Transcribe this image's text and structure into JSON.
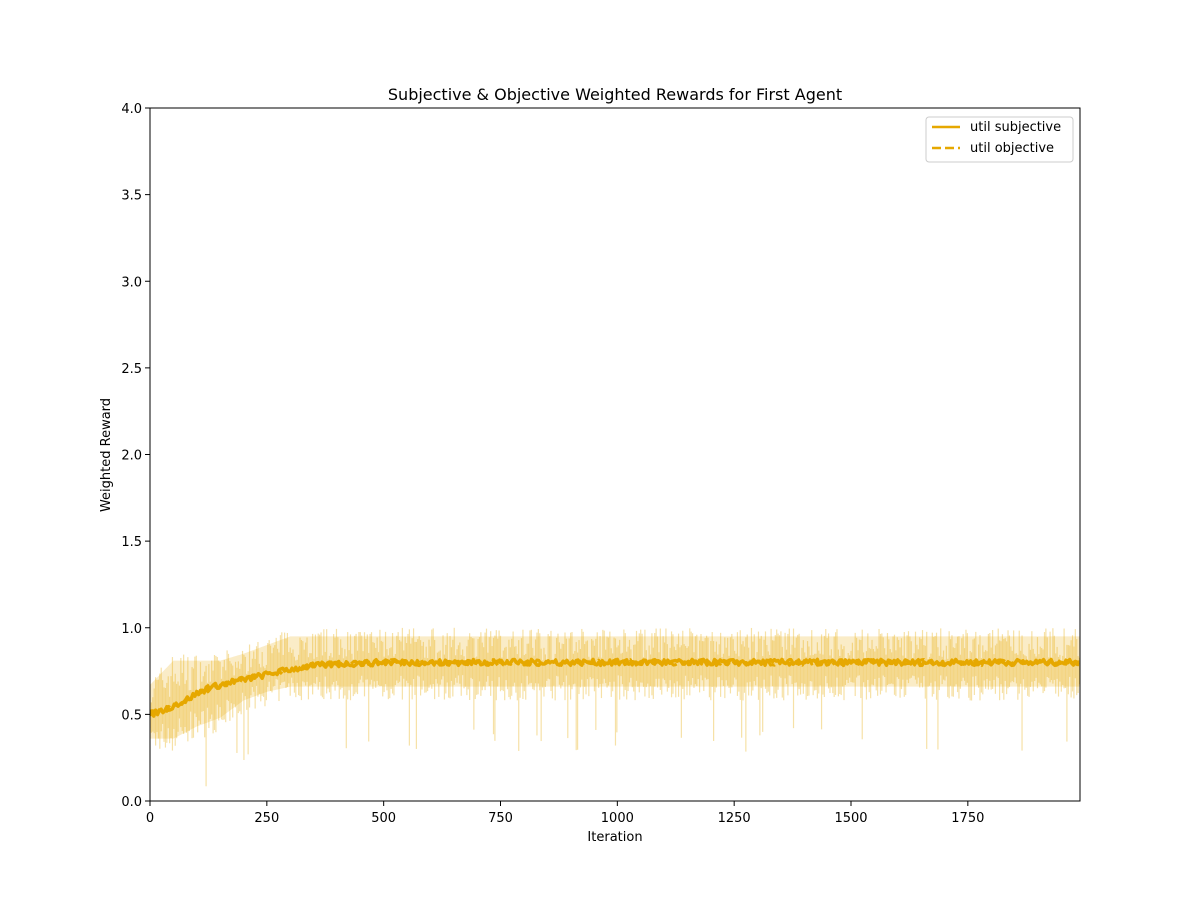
{
  "chart_data": {
    "type": "line",
    "title": "Subjective & Objective Weighted Rewards for First Agent",
    "xlabel": "Iteration",
    "ylabel": "Weighted Reward",
    "xlim": [
      0,
      1990
    ],
    "ylim": [
      0.0,
      4.0
    ],
    "xticks": [
      0,
      250,
      500,
      750,
      1000,
      1250,
      1500,
      1750
    ],
    "xtick_labels": [
      "0",
      "250",
      "500",
      "750",
      "1000",
      "1250",
      "1500",
      "1750"
    ],
    "yticks": [
      0.0,
      0.5,
      1.0,
      1.5,
      2.0,
      2.5,
      3.0,
      3.5,
      4.0
    ],
    "ytick_labels": [
      "0.0",
      "0.5",
      "1.0",
      "1.5",
      "2.0",
      "2.5",
      "3.0",
      "3.5",
      "4.0"
    ],
    "grid": false,
    "legend_position": "top-right",
    "series": [
      {
        "name": "util subjective",
        "style": "solid",
        "color": "#e6a800",
        "x": [
          0,
          25,
          50,
          75,
          100,
          125,
          150,
          175,
          200,
          250,
          300,
          350,
          400,
          450,
          500,
          600,
          700,
          800,
          900,
          1000,
          1100,
          1200,
          1300,
          1400,
          1500,
          1600,
          1700,
          1800,
          1900,
          1990
        ],
        "values": [
          0.5,
          0.52,
          0.55,
          0.58,
          0.62,
          0.65,
          0.67,
          0.69,
          0.7,
          0.73,
          0.76,
          0.78,
          0.79,
          0.795,
          0.8,
          0.8,
          0.8,
          0.8,
          0.8,
          0.8,
          0.8,
          0.8,
          0.8,
          0.8,
          0.8,
          0.8,
          0.8,
          0.8,
          0.8,
          0.8
        ]
      },
      {
        "name": "util objective",
        "style": "dashed",
        "color": "#e6a800",
        "x": [
          0,
          25,
          50,
          75,
          100,
          125,
          150,
          175,
          200,
          250,
          300,
          350,
          400,
          450,
          500,
          600,
          700,
          800,
          900,
          1000,
          1100,
          1200,
          1300,
          1400,
          1500,
          1600,
          1700,
          1800,
          1900,
          1990
        ],
        "values": [
          0.5,
          0.52,
          0.55,
          0.58,
          0.62,
          0.65,
          0.67,
          0.69,
          0.7,
          0.73,
          0.76,
          0.78,
          0.79,
          0.795,
          0.8,
          0.8,
          0.8,
          0.8,
          0.8,
          0.8,
          0.8,
          0.8,
          0.8,
          0.8,
          0.8,
          0.8,
          0.8,
          0.8,
          0.8,
          0.8
        ]
      }
    ],
    "raw_band": {
      "color": "#e6a800",
      "opacity": 0.35,
      "x": [
        0,
        50,
        100,
        150,
        200,
        250,
        300,
        400,
        500,
        2000
      ],
      "upper": [
        0.72,
        0.86,
        0.86,
        0.86,
        0.9,
        0.95,
        1.0,
        1.0,
        1.0,
        1.0
      ],
      "lower": [
        0.28,
        0.28,
        0.35,
        0.4,
        0.5,
        0.55,
        0.58,
        0.58,
        0.58,
        0.58
      ]
    }
  }
}
